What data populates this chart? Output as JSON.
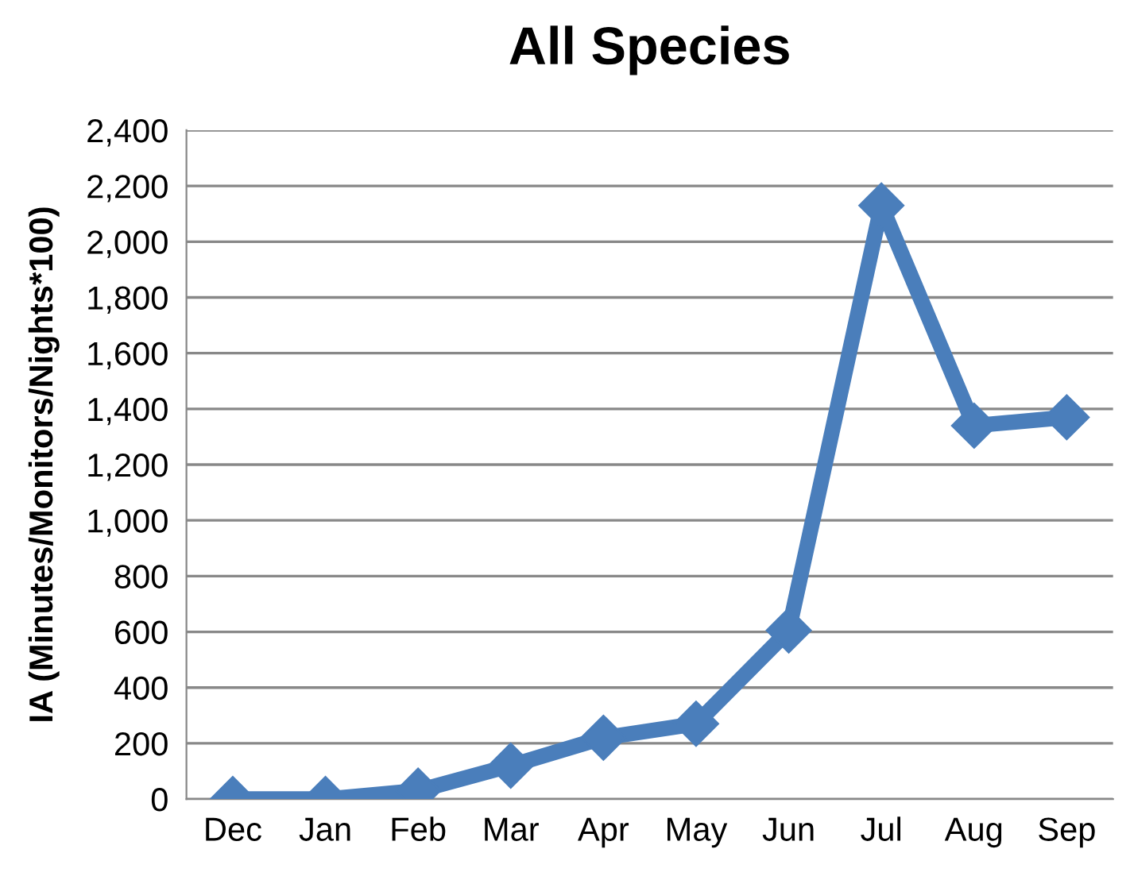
{
  "chart_data": {
    "type": "line",
    "title": "All Species",
    "ylabel": "IA (Minutes/Monitors/Nights*100)",
    "categories": [
      "Dec",
      "Jan",
      "Feb",
      "Mar",
      "Apr",
      "May",
      "Jun",
      "Jul",
      "Aug",
      "Sep"
    ],
    "series": [
      {
        "color": "#4a7ebb",
        "values": [
          0,
          0,
          30,
          120,
          220,
          270,
          605,
          2130,
          1340,
          1370
        ]
      }
    ],
    "ylim": [
      0,
      2400
    ],
    "yticks": [
      {
        "value": 0,
        "label": "0"
      },
      {
        "value": 200,
        "label": "200"
      },
      {
        "value": 400,
        "label": "400"
      },
      {
        "value": 600,
        "label": "600"
      },
      {
        "value": 800,
        "label": "800"
      },
      {
        "value": 1000,
        "label": "1,000"
      },
      {
        "value": 1200,
        "label": "1,200"
      },
      {
        "value": 1400,
        "label": "1,400"
      },
      {
        "value": 1600,
        "label": "1,600"
      },
      {
        "value": 1800,
        "label": "1,800"
      },
      {
        "value": 2000,
        "label": "2,000"
      },
      {
        "value": 2200,
        "label": "2,200"
      },
      {
        "value": 2400,
        "label": "2,400"
      }
    ],
    "grid": "y",
    "marker": "diamond",
    "line_style": "solid"
  }
}
